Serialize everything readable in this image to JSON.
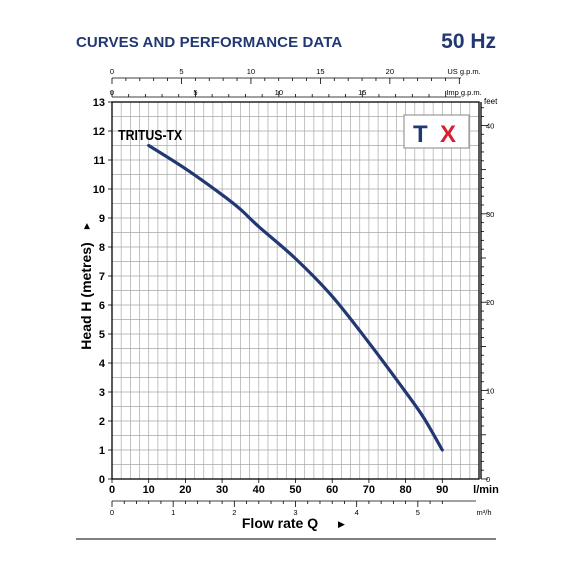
{
  "header": {
    "title": "CURVES AND PERFORMANCE DATA",
    "frequency": "50 Hz"
  },
  "logo": {
    "text": "TX",
    "text_color": "#213873",
    "accent_color": "#d6202f"
  },
  "colors": {
    "curve": "#213873",
    "heading": "#213873"
  },
  "chart_data": {
    "type": "line",
    "series": [
      {
        "name": "TRITUS-TX",
        "x": [
          10,
          20,
          30,
          35,
          40,
          50,
          60,
          70,
          80,
          85,
          90
        ],
        "y": [
          11.5,
          10.7,
          9.8,
          9.3,
          8.7,
          7.6,
          6.3,
          4.7,
          3.0,
          2.1,
          1.0
        ]
      }
    ],
    "xlabel": "Flow rate Q",
    "ylabel": "Head H (metres)",
    "xlim": [
      0,
      100
    ],
    "ylim": [
      0,
      13
    ],
    "x_unit": "l/min",
    "x_ticks": [
      0,
      10,
      20,
      30,
      40,
      50,
      60,
      70,
      80,
      90
    ],
    "y_ticks": [
      0,
      1,
      2,
      3,
      4,
      5,
      6,
      7,
      8,
      9,
      10,
      11,
      12,
      13
    ],
    "grid": true,
    "secondary_axes": {
      "us_gpm": {
        "unit": "US g.p.m.",
        "ticks": [
          0,
          5,
          10,
          15,
          20
        ]
      },
      "imp_gpm": {
        "unit": "Imp g.p.m.",
        "ticks": [
          0,
          5,
          10,
          15
        ]
      },
      "m3h": {
        "unit": "m³/h",
        "ticks": [
          0,
          1,
          2,
          3,
          4,
          5
        ]
      },
      "feet": {
        "unit": "feet",
        "ticks": [
          0,
          10,
          20,
          30,
          40
        ]
      }
    }
  }
}
